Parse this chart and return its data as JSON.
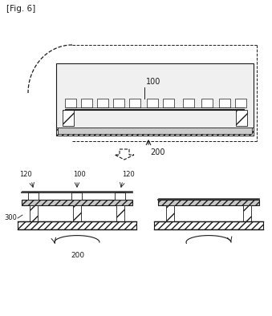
{
  "fig_label": "[Fig. 6]",
  "bg_color": "#ffffff",
  "line_color": "#1a1a1a",
  "hatch_color": "#555555",
  "label_100_top": "100",
  "label_200_top": "200",
  "label_120_left": "120",
  "label_100_bot": "100",
  "label_120_right": "120",
  "label_300": "300",
  "label_200_bot": "200"
}
